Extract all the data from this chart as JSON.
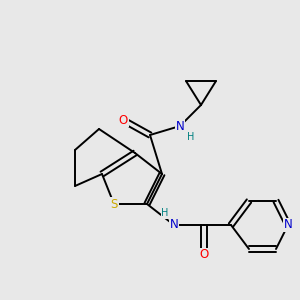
{
  "bg_color": "#e8e8e8",
  "atom_colors": {
    "C": "#000000",
    "N": "#0000cc",
    "O": "#ff0000",
    "S": "#ccaa00",
    "H": "#008080",
    "N_blue": "#0000cc"
  },
  "figsize": [
    3.0,
    3.0
  ],
  "dpi": 100
}
